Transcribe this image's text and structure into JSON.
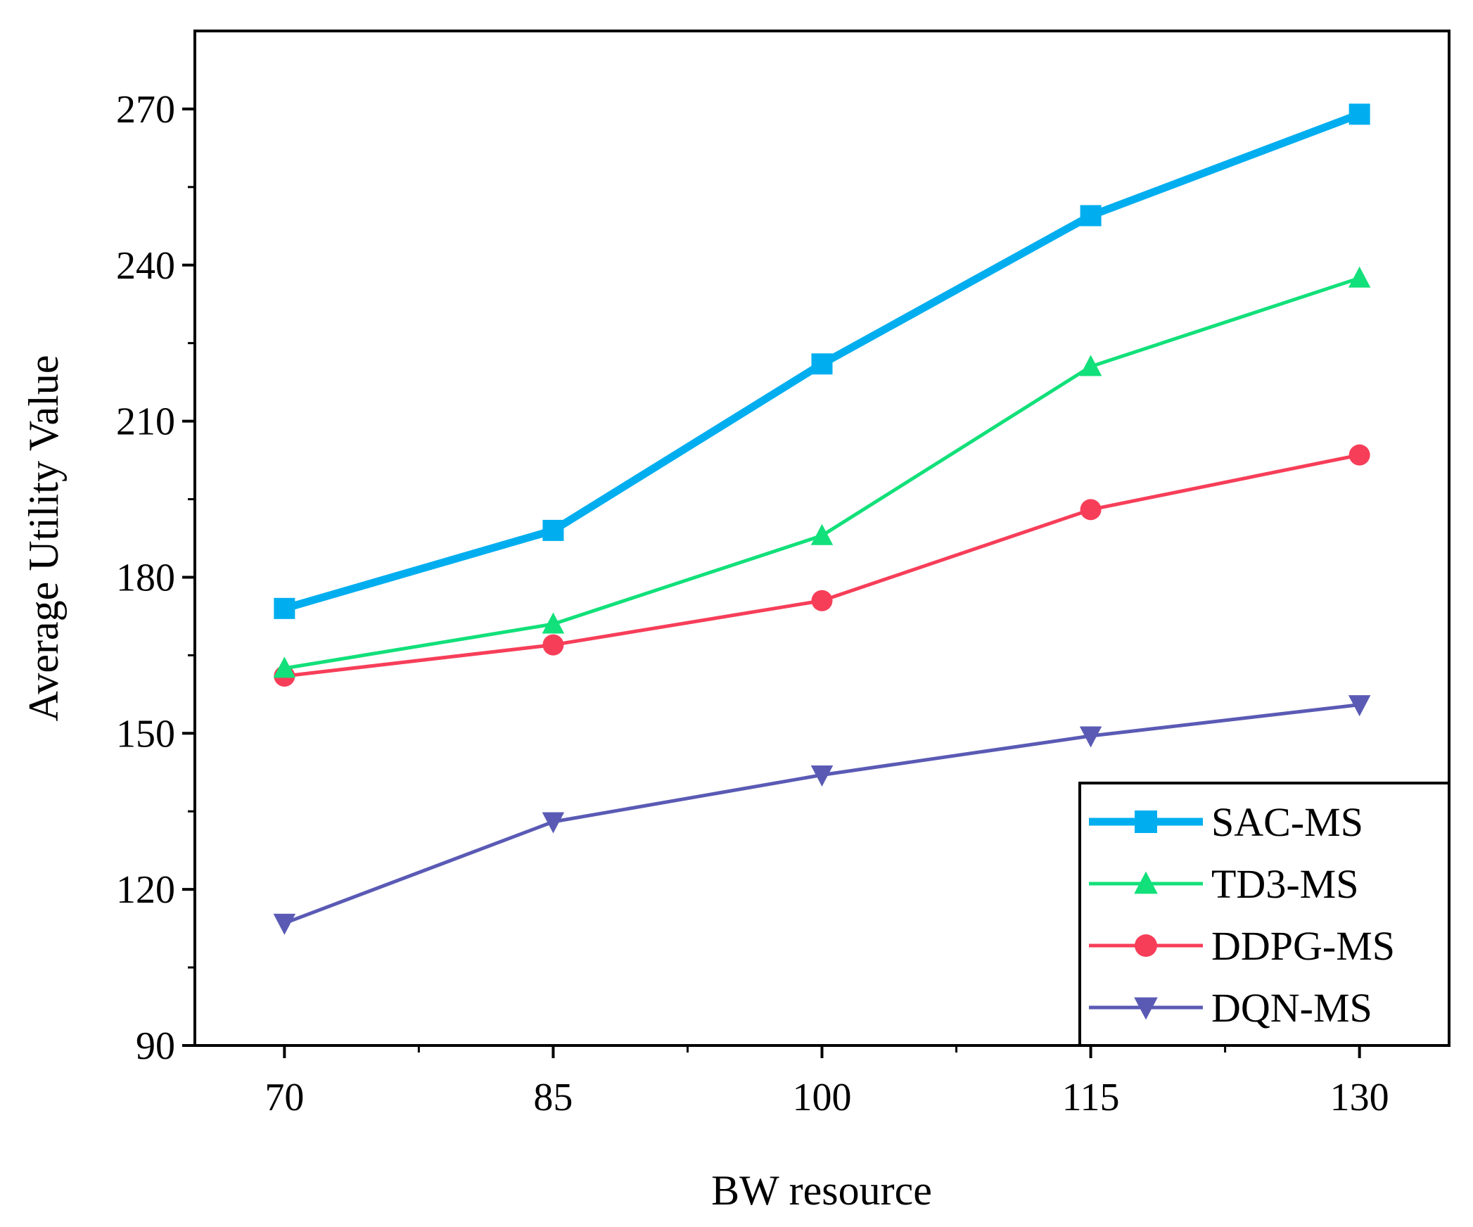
{
  "chart_data": {
    "type": "line",
    "title": "",
    "xlabel": "BW resource",
    "ylabel": "Average Utility Value",
    "x": [
      70,
      85,
      100,
      115,
      130
    ],
    "xlim": [
      65,
      135
    ],
    "ylim": [
      90,
      285
    ],
    "xticks": [
      70,
      85,
      100,
      115,
      130
    ],
    "yticks": [
      90,
      120,
      150,
      180,
      210,
      240,
      270
    ],
    "grid": false,
    "legend_position": "bottom-right",
    "series": [
      {
        "name": "SAC-MS",
        "values": [
          174,
          189,
          221,
          249.5,
          269
        ],
        "color": "#00AEEF",
        "marker": "square",
        "line_width": "thick"
      },
      {
        "name": "TD3-MS",
        "values": [
          162.5,
          171,
          188,
          220.5,
          237.5
        ],
        "color": "#12E07A",
        "marker": "triangle-up",
        "line_width": "normal"
      },
      {
        "name": "DDPG-MS",
        "values": [
          161,
          167,
          175.5,
          193,
          203.5
        ],
        "color": "#F73E59",
        "marker": "circle",
        "line_width": "normal"
      },
      {
        "name": "DQN-MS",
        "values": [
          113.5,
          133,
          142,
          149.5,
          155.5
        ],
        "color": "#5A5AB5",
        "marker": "triangle-down",
        "line_width": "normal"
      }
    ]
  }
}
